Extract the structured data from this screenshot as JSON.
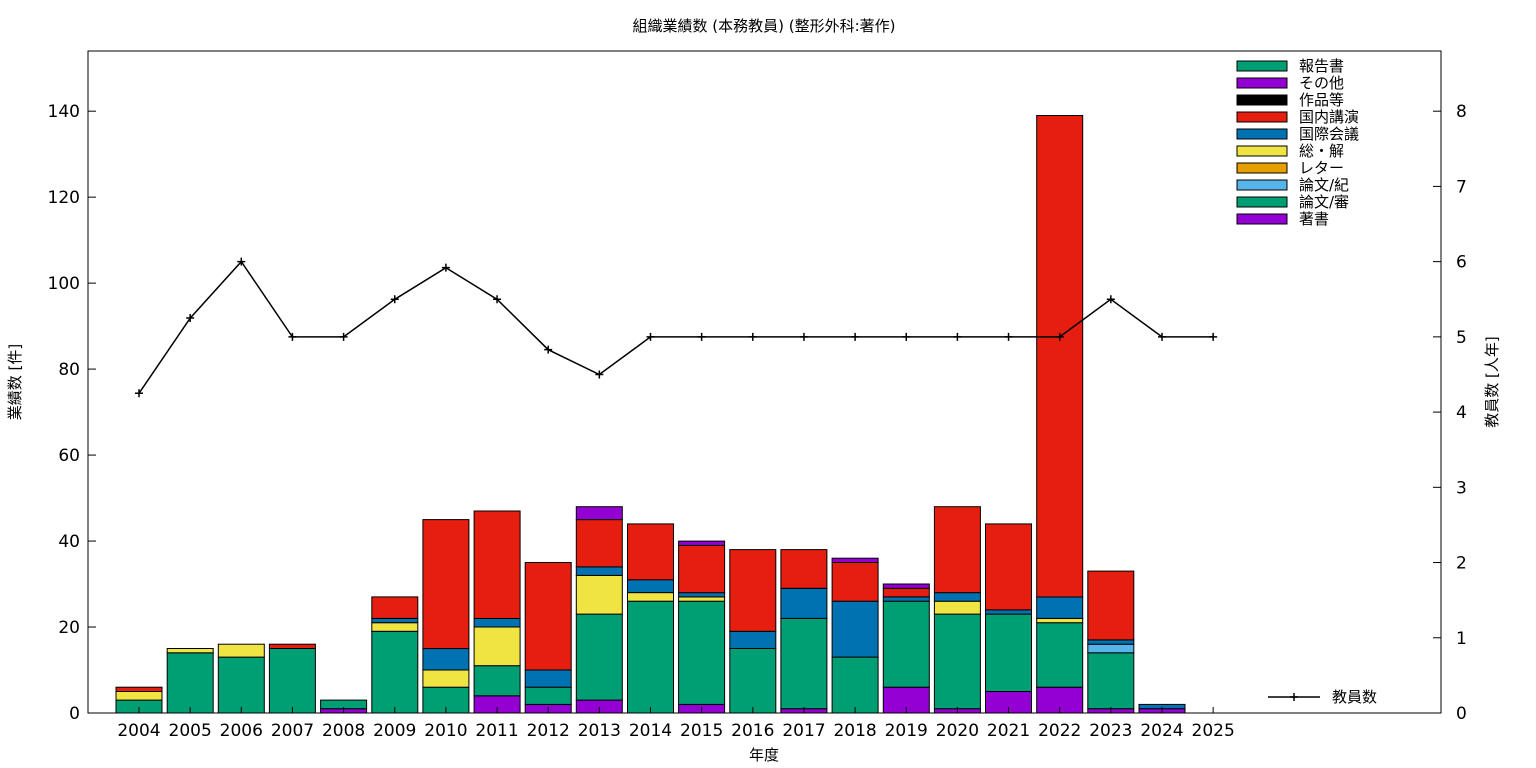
{
  "chart_data": {
    "type": "bar",
    "stacked": true,
    "title": "組織業績数 (本務教員) (整形外科:著作)",
    "xlabel": "年度",
    "ylabel": "業績数 [件]",
    "y2label": "教員数 [人年]",
    "ylim": [
      0,
      154
    ],
    "y2lim": [
      0,
      8.8
    ],
    "yticks": [
      0,
      20,
      40,
      60,
      80,
      100,
      120,
      140
    ],
    "y2ticks": [
      0,
      1,
      2,
      3,
      4,
      5,
      6,
      7,
      8
    ],
    "grid": false,
    "legend_position": "top-right",
    "categories": [
      "2004",
      "2005",
      "2006",
      "2007",
      "2008",
      "2009",
      "2010",
      "2011",
      "2012",
      "2013",
      "2014",
      "2015",
      "2016",
      "2017",
      "2018",
      "2019",
      "2020",
      "2021",
      "2022",
      "2023",
      "2024",
      "2025"
    ],
    "series": [
      {
        "name": "著書",
        "color": "#9400d3",
        "values": [
          0,
          0,
          0,
          0,
          1,
          0,
          0,
          4,
          2,
          3,
          0,
          2,
          0,
          1,
          0,
          6,
          1,
          5,
          6,
          1,
          1,
          0
        ]
      },
      {
        "name": "論文/審",
        "color": "#009e73",
        "values": [
          3,
          14,
          13,
          15,
          2,
          19,
          6,
          7,
          4,
          20,
          26,
          24,
          15,
          21,
          13,
          20,
          22,
          18,
          15,
          13,
          0,
          0
        ]
      },
      {
        "name": "論文/紀",
        "color": "#56b4e9",
        "values": [
          0,
          0,
          0,
          0,
          0,
          0,
          0,
          0,
          0,
          0,
          0,
          0,
          0,
          0,
          0,
          0,
          0,
          0,
          0,
          2,
          0,
          0
        ]
      },
      {
        "name": "レター",
        "color": "#e69f00",
        "values": [
          0,
          0,
          0,
          0,
          0,
          0,
          0,
          0,
          0,
          0,
          0,
          0,
          0,
          0,
          0,
          0,
          0,
          0,
          0,
          0,
          0,
          0
        ]
      },
      {
        "name": "総・解",
        "color": "#f0e442",
        "values": [
          2,
          1,
          3,
          0,
          0,
          2,
          4,
          9,
          0,
          9,
          2,
          1,
          0,
          0,
          0,
          0,
          3,
          0,
          1,
          0,
          0,
          0
        ]
      },
      {
        "name": "国際会議",
        "color": "#0072b2",
        "values": [
          0,
          0,
          0,
          0,
          0,
          1,
          5,
          2,
          4,
          2,
          3,
          1,
          4,
          7,
          13,
          1,
          2,
          1,
          5,
          1,
          1,
          0
        ]
      },
      {
        "name": "国内講演",
        "color": "#e51e10",
        "values": [
          1,
          0,
          0,
          1,
          0,
          5,
          30,
          25,
          25,
          11,
          13,
          11,
          19,
          9,
          9,
          2,
          20,
          20,
          112,
          16,
          0,
          0
        ]
      },
      {
        "name": "作品等",
        "color": "#000000",
        "values": [
          0,
          0,
          0,
          0,
          0,
          0,
          0,
          0,
          0,
          0,
          0,
          0,
          0,
          0,
          0,
          0,
          0,
          0,
          0,
          0,
          0,
          0
        ]
      },
      {
        "name": "その他",
        "color": "#9400d3",
        "values": [
          0,
          0,
          0,
          0,
          0,
          0,
          0,
          0,
          0,
          3,
          0,
          1,
          0,
          0,
          1,
          1,
          0,
          0,
          0,
          0,
          0,
          0
        ]
      },
      {
        "name": "報告書",
        "color": "#009e73",
        "values": [
          0,
          0,
          0,
          0,
          0,
          0,
          0,
          0,
          0,
          0,
          0,
          0,
          0,
          0,
          0,
          0,
          0,
          0,
          0,
          0,
          0,
          0
        ]
      }
    ],
    "line_series": {
      "name": "教員数",
      "color": "#000000",
      "axis": "y2",
      "values": [
        4.25,
        5.25,
        6.0,
        5.0,
        5.0,
        5.5,
        5.92,
        5.5,
        4.83,
        4.5,
        5.0,
        5.0,
        5.0,
        5.0,
        5.0,
        5.0,
        5.0,
        5.0,
        5.0,
        5.5,
        5.0,
        5.0
      ]
    }
  }
}
